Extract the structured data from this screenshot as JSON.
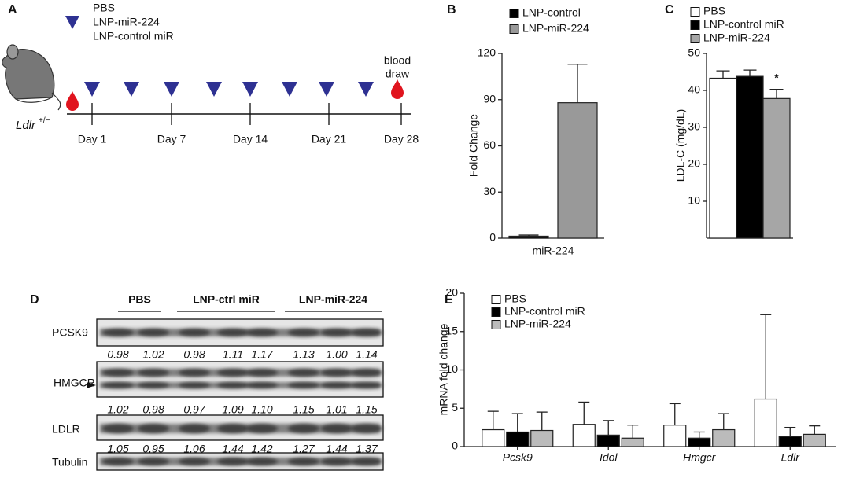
{
  "panel_a": {
    "label": "A",
    "legend": [
      "PBS",
      "LNP-miR-224",
      "LNP-control miR"
    ],
    "mouse_label": "Ldlr",
    "genotype": "+/−",
    "days": [
      "Day 1",
      "Day 7",
      "Day 14",
      "Day 21",
      "Day 28"
    ],
    "blood_draw": [
      "blood",
      "draw"
    ]
  },
  "chart_data": [
    {
      "label": "B",
      "type": "bar",
      "categories": [
        "miR-224"
      ],
      "series": [
        {
          "name": "LNP-control",
          "color": "#000000",
          "values": [
            1.3
          ],
          "errors": [
            0.7
          ]
        },
        {
          "name": "LNP-miR-224",
          "color": "#999999",
          "values": [
            88
          ],
          "errors": [
            25
          ]
        }
      ],
      "ylim": [
        0,
        120
      ],
      "yticks": [
        0,
        30,
        60,
        90,
        120
      ],
      "ylabel": "Fold Change"
    },
    {
      "label": "C",
      "type": "bar",
      "categories": [
        null
      ],
      "series": [
        {
          "name": "PBS",
          "color": "#ffffff",
          "values": [
            43.3
          ],
          "errors": [
            2.0
          ]
        },
        {
          "name": "LNP-control miR",
          "color": "#000000",
          "values": [
            43.8
          ],
          "errors": [
            1.7
          ]
        },
        {
          "name": "LNP-miR-224",
          "color": "#a6a6a6",
          "values": [
            37.8
          ],
          "errors": [
            2.5
          ]
        }
      ],
      "ylim": [
        0,
        50
      ],
      "yticks": [
        10,
        20,
        30,
        40,
        50
      ],
      "ylabel": "LDL-C (mg/dL)",
      "annotation": "*"
    },
    {
      "label": "E",
      "type": "bar",
      "categories": [
        "Pcsk9",
        "Idol",
        "Hmgcr",
        "Ldlr"
      ],
      "series": [
        {
          "name": "PBS",
          "color": "#ffffff",
          "values": [
            2.2,
            2.9,
            2.8,
            6.2
          ],
          "errors": [
            2.4,
            2.9,
            2.8,
            11.0
          ]
        },
        {
          "name": "LNP-control miR",
          "color": "#000000",
          "values": [
            1.9,
            1.5,
            1.1,
            1.3
          ],
          "errors": [
            2.4,
            1.9,
            0.8,
            1.2
          ]
        },
        {
          "name": "LNP-miR-224",
          "color": "#bbbbbb",
          "values": [
            2.1,
            1.1,
            2.2,
            1.6
          ],
          "errors": [
            2.4,
            1.7,
            2.1,
            1.1
          ]
        }
      ],
      "ylim": [
        0,
        20
      ],
      "yticks": [
        0,
        5,
        10,
        15,
        20
      ],
      "ylabel": "mRNA fold change"
    }
  ],
  "panel_d": {
    "label": "D",
    "groups": [
      "PBS",
      "LNP-ctrl miR",
      "LNP-miR-224"
    ],
    "rows": [
      {
        "name": "PCSK9",
        "values": [
          "0.98",
          "1.02",
          "0.98",
          "1.11",
          "1.17",
          "1.13",
          "1.00",
          "1.14"
        ]
      },
      {
        "name": "HMGCR",
        "values": [
          "1.02",
          "0.98",
          "0.97",
          "1.09",
          "1.10",
          "1.15",
          "1.01",
          "1.15"
        ]
      },
      {
        "name": "LDLR",
        "values": [
          "1.05",
          "0.95",
          "1.06",
          "1.44",
          "1.42",
          "1.27",
          "1.44",
          "1.37"
        ]
      },
      {
        "name": "Tubulin"
      }
    ]
  }
}
